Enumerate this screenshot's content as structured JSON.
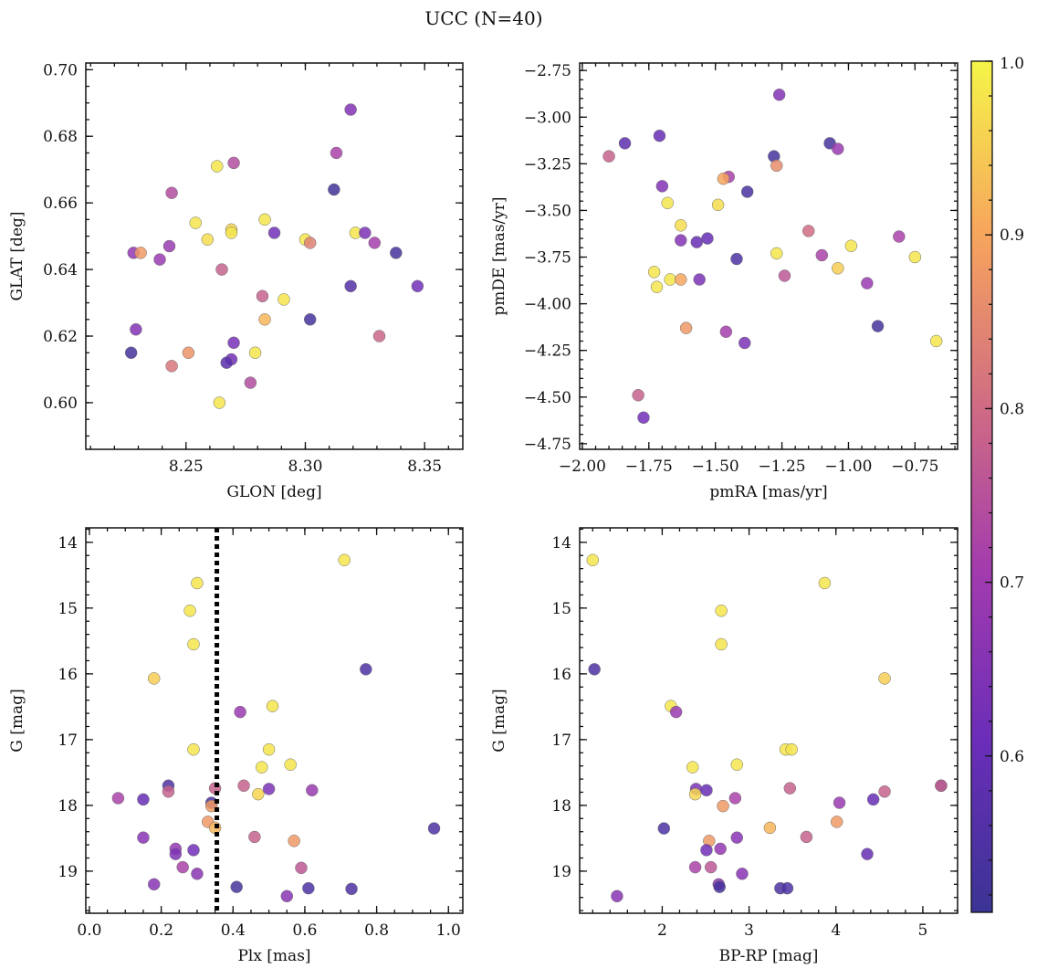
{
  "title": "UCC (N=40)",
  "colorbar": {
    "range": [
      0.51,
      1.0
    ],
    "ticks": [
      0.6,
      0.7,
      0.8,
      0.9,
      1.0
    ],
    "tick_labels": [
      "0.6",
      "0.7",
      "0.8",
      "0.9",
      "1.0"
    ],
    "colormap": "plasma"
  },
  "chart_data": [
    {
      "type": "scatter",
      "xlabel": "GLON [deg]",
      "ylabel": "GLAT [deg]",
      "xlim": [
        8.208,
        8.366
      ],
      "ylim": [
        0.586,
        0.702
      ],
      "x_ticks": [
        8.25,
        8.3,
        8.35
      ],
      "x_tick_labels": [
        "8.25",
        "8.30",
        "8.35"
      ],
      "y_ticks": [
        0.6,
        0.62,
        0.64,
        0.66,
        0.68,
        0.7
      ],
      "y_tick_labels": [
        "0.60",
        "0.62",
        "0.64",
        "0.66",
        "0.68",
        "0.70"
      ],
      "x_minor_step": 0.01,
      "y_minor_step": 0.005,
      "vline": null,
      "points": [
        {
          "x": 8.319,
          "y": 0.688,
          "c": 0.65
        },
        {
          "x": 8.313,
          "y": 0.675,
          "c": 0.72
        },
        {
          "x": 8.27,
          "y": 0.672,
          "c": 0.74
        },
        {
          "x": 8.263,
          "y": 0.671,
          "c": 0.98
        },
        {
          "x": 8.312,
          "y": 0.664,
          "c": 0.52
        },
        {
          "x": 8.244,
          "y": 0.663,
          "c": 0.74
        },
        {
          "x": 8.283,
          "y": 0.655,
          "c": 0.98
        },
        {
          "x": 8.254,
          "y": 0.654,
          "c": 0.98
        },
        {
          "x": 8.269,
          "y": 0.652,
          "c": 0.96
        },
        {
          "x": 8.269,
          "y": 0.651,
          "c": 0.98
        },
        {
          "x": 8.287,
          "y": 0.651,
          "c": 0.62
        },
        {
          "x": 8.321,
          "y": 0.651,
          "c": 0.98
        },
        {
          "x": 8.325,
          "y": 0.651,
          "c": 0.64
        },
        {
          "x": 8.259,
          "y": 0.649,
          "c": 0.97
        },
        {
          "x": 8.3,
          "y": 0.649,
          "c": 0.98
        },
        {
          "x": 8.302,
          "y": 0.648,
          "c": 0.84
        },
        {
          "x": 8.329,
          "y": 0.648,
          "c": 0.71
        },
        {
          "x": 8.243,
          "y": 0.647,
          "c": 0.69
        },
        {
          "x": 8.228,
          "y": 0.645,
          "c": 0.68
        },
        {
          "x": 8.231,
          "y": 0.645,
          "c": 0.88
        },
        {
          "x": 8.338,
          "y": 0.645,
          "c": 0.53
        },
        {
          "x": 8.239,
          "y": 0.643,
          "c": 0.69
        },
        {
          "x": 8.265,
          "y": 0.64,
          "c": 0.78
        },
        {
          "x": 8.319,
          "y": 0.635,
          "c": 0.56
        },
        {
          "x": 8.347,
          "y": 0.635,
          "c": 0.62
        },
        {
          "x": 8.282,
          "y": 0.632,
          "c": 0.78
        },
        {
          "x": 8.291,
          "y": 0.631,
          "c": 0.98
        },
        {
          "x": 8.283,
          "y": 0.625,
          "c": 0.92
        },
        {
          "x": 8.302,
          "y": 0.625,
          "c": 0.53
        },
        {
          "x": 8.229,
          "y": 0.622,
          "c": 0.65
        },
        {
          "x": 8.331,
          "y": 0.62,
          "c": 0.79
        },
        {
          "x": 8.27,
          "y": 0.618,
          "c": 0.63
        },
        {
          "x": 8.227,
          "y": 0.615,
          "c": 0.53
        },
        {
          "x": 8.251,
          "y": 0.615,
          "c": 0.87
        },
        {
          "x": 8.279,
          "y": 0.615,
          "c": 0.98
        },
        {
          "x": 8.269,
          "y": 0.613,
          "c": 0.62
        },
        {
          "x": 8.267,
          "y": 0.612,
          "c": 0.57
        },
        {
          "x": 8.244,
          "y": 0.611,
          "c": 0.82
        },
        {
          "x": 8.277,
          "y": 0.606,
          "c": 0.74
        },
        {
          "x": 8.264,
          "y": 0.6,
          "c": 0.98
        }
      ]
    },
    {
      "type": "scatter",
      "xlabel": "pmRA [mas/yr]",
      "ylabel": "pmDE [mas/yr]",
      "xlim": [
        -2.01,
        -0.59
      ],
      "ylim": [
        -4.78,
        -2.71
      ],
      "x_ticks": [
        -2.0,
        -1.75,
        -1.5,
        -1.25,
        -1.0,
        -0.75
      ],
      "x_tick_labels": [
        "−2.00",
        "−1.75",
        "−1.50",
        "−1.25",
        "−1.00",
        "−0.75"
      ],
      "y_ticks": [
        -4.75,
        -4.5,
        -4.25,
        -4.0,
        -3.75,
        -3.5,
        -3.25,
        -3.0,
        -2.75
      ],
      "y_tick_labels": [
        "−4.75",
        "−4.50",
        "−4.25",
        "−4.00",
        "−3.75",
        "−3.50",
        "−3.25",
        "−3.00",
        "−2.75"
      ],
      "x_minor_step": 0.05,
      "y_minor_step": 0.05,
      "vline": null,
      "points": [
        {
          "x": -1.26,
          "y": -2.88,
          "c": 0.65
        },
        {
          "x": -1.71,
          "y": -3.1,
          "c": 0.6
        },
        {
          "x": -1.84,
          "y": -3.14,
          "c": 0.58
        },
        {
          "x": -1.07,
          "y": -3.14,
          "c": 0.53
        },
        {
          "x": -1.04,
          "y": -3.17,
          "c": 0.69
        },
        {
          "x": -1.9,
          "y": -3.21,
          "c": 0.78
        },
        {
          "x": -1.28,
          "y": -3.21,
          "c": 0.53
        },
        {
          "x": -1.27,
          "y": -3.26,
          "c": 0.86
        },
        {
          "x": -1.45,
          "y": -3.32,
          "c": 0.72
        },
        {
          "x": -1.47,
          "y": -3.33,
          "c": 0.9
        },
        {
          "x": -1.7,
          "y": -3.37,
          "c": 0.65
        },
        {
          "x": -1.38,
          "y": -3.4,
          "c": 0.54
        },
        {
          "x": -1.68,
          "y": -3.46,
          "c": 0.98
        },
        {
          "x": -1.49,
          "y": -3.47,
          "c": 0.97
        },
        {
          "x": -1.63,
          "y": -3.58,
          "c": 0.97
        },
        {
          "x": -1.15,
          "y": -3.61,
          "c": 0.8
        },
        {
          "x": -0.81,
          "y": -3.64,
          "c": 0.72
        },
        {
          "x": -1.53,
          "y": -3.65,
          "c": 0.6
        },
        {
          "x": -1.63,
          "y": -3.66,
          "c": 0.65
        },
        {
          "x": -1.57,
          "y": -3.67,
          "c": 0.6
        },
        {
          "x": -0.99,
          "y": -3.69,
          "c": 0.98
        },
        {
          "x": -1.27,
          "y": -3.73,
          "c": 0.98
        },
        {
          "x": -1.1,
          "y": -3.74,
          "c": 0.72
        },
        {
          "x": -0.75,
          "y": -3.75,
          "c": 0.98
        },
        {
          "x": -1.42,
          "y": -3.76,
          "c": 0.55
        },
        {
          "x": -1.04,
          "y": -3.81,
          "c": 0.95
        },
        {
          "x": -1.73,
          "y": -3.83,
          "c": 0.98
        },
        {
          "x": -1.24,
          "y": -3.85,
          "c": 0.76
        },
        {
          "x": -1.67,
          "y": -3.87,
          "c": 0.98
        },
        {
          "x": -1.63,
          "y": -3.87,
          "c": 0.9
        },
        {
          "x": -1.56,
          "y": -3.87,
          "c": 0.64
        },
        {
          "x": -0.93,
          "y": -3.89,
          "c": 0.69
        },
        {
          "x": -1.72,
          "y": -3.91,
          "c": 0.98
        },
        {
          "x": -0.89,
          "y": -4.12,
          "c": 0.53
        },
        {
          "x": -1.61,
          "y": -4.13,
          "c": 0.88
        },
        {
          "x": -1.46,
          "y": -4.15,
          "c": 0.71
        },
        {
          "x": -0.67,
          "y": -4.2,
          "c": 0.98
        },
        {
          "x": -1.39,
          "y": -4.21,
          "c": 0.64
        },
        {
          "x": -1.79,
          "y": -4.49,
          "c": 0.78
        },
        {
          "x": -1.77,
          "y": -4.61,
          "c": 0.62
        }
      ]
    },
    {
      "type": "scatter",
      "xlabel": "Plx [mas]",
      "ylabel": "G [mag]",
      "xlim": [
        -0.01,
        1.04
      ],
      "ylim": [
        19.64,
        13.78
      ],
      "y_inverted": true,
      "x_ticks": [
        0.0,
        0.2,
        0.4,
        0.6,
        0.8,
        1.0
      ],
      "x_tick_labels": [
        "0.0",
        "0.2",
        "0.4",
        "0.6",
        "0.8",
        "1.0"
      ],
      "y_ticks": [
        14,
        15,
        16,
        17,
        18,
        19
      ],
      "y_tick_labels": [
        "14",
        "15",
        "16",
        "17",
        "18",
        "19"
      ],
      "x_minor_step": 0.05,
      "y_minor_step": 0.2,
      "vline": 0.355,
      "points": [
        {
          "x": 0.71,
          "y": 14.27,
          "c": 0.98
        },
        {
          "x": 0.3,
          "y": 14.62,
          "c": 0.98
        },
        {
          "x": 0.28,
          "y": 15.04,
          "c": 0.98
        },
        {
          "x": 0.29,
          "y": 15.55,
          "c": 0.98
        },
        {
          "x": 0.77,
          "y": 15.93,
          "c": 0.55
        },
        {
          "x": 0.18,
          "y": 16.07,
          "c": 0.95
        },
        {
          "x": 0.51,
          "y": 16.49,
          "c": 0.98
        },
        {
          "x": 0.42,
          "y": 16.58,
          "c": 0.69
        },
        {
          "x": 0.29,
          "y": 17.15,
          "c": 0.98
        },
        {
          "x": 0.5,
          "y": 17.15,
          "c": 0.98
        },
        {
          "x": 0.56,
          "y": 17.38,
          "c": 0.98
        },
        {
          "x": 0.48,
          "y": 17.42,
          "c": 0.98
        },
        {
          "x": 0.22,
          "y": 17.7,
          "c": 0.55
        },
        {
          "x": 0.43,
          "y": 17.7,
          "c": 0.78
        },
        {
          "x": 0.35,
          "y": 17.74,
          "c": 0.78
        },
        {
          "x": 0.5,
          "y": 17.75,
          "c": 0.64
        },
        {
          "x": 0.62,
          "y": 17.77,
          "c": 0.69
        },
        {
          "x": 0.22,
          "y": 17.79,
          "c": 0.78
        },
        {
          "x": 0.47,
          "y": 17.83,
          "c": 0.96
        },
        {
          "x": 0.08,
          "y": 17.89,
          "c": 0.72
        },
        {
          "x": 0.15,
          "y": 17.91,
          "c": 0.6
        },
        {
          "x": 0.34,
          "y": 17.96,
          "c": 0.54
        },
        {
          "x": 0.34,
          "y": 18.01,
          "c": 0.88
        },
        {
          "x": 0.33,
          "y": 18.25,
          "c": 0.88
        },
        {
          "x": 0.35,
          "y": 18.34,
          "c": 0.92
        },
        {
          "x": 0.96,
          "y": 18.35,
          "c": 0.55
        },
        {
          "x": 0.15,
          "y": 18.49,
          "c": 0.66
        },
        {
          "x": 0.46,
          "y": 18.48,
          "c": 0.78
        },
        {
          "x": 0.57,
          "y": 18.54,
          "c": 0.88
        },
        {
          "x": 0.24,
          "y": 18.66,
          "c": 0.68
        },
        {
          "x": 0.29,
          "y": 18.68,
          "c": 0.62
        },
        {
          "x": 0.24,
          "y": 18.74,
          "c": 0.64
        },
        {
          "x": 0.26,
          "y": 18.94,
          "c": 0.72
        },
        {
          "x": 0.59,
          "y": 18.95,
          "c": 0.76
        },
        {
          "x": 0.3,
          "y": 19.04,
          "c": 0.66
        },
        {
          "x": 0.18,
          "y": 19.2,
          "c": 0.66
        },
        {
          "x": 0.41,
          "y": 19.24,
          "c": 0.53
        },
        {
          "x": 0.61,
          "y": 19.26,
          "c": 0.55
        },
        {
          "x": 0.73,
          "y": 19.27,
          "c": 0.55
        },
        {
          "x": 0.55,
          "y": 19.38,
          "c": 0.66
        }
      ]
    },
    {
      "type": "scatter",
      "xlabel": "BP-RP [mag]",
      "ylabel": "G [mag]",
      "xlim": [
        1.05,
        5.4
      ],
      "ylim": [
        19.64,
        13.78
      ],
      "y_inverted": true,
      "x_ticks": [
        2,
        3,
        4,
        5
      ],
      "x_tick_labels": [
        "2",
        "3",
        "4",
        "5"
      ],
      "y_ticks": [
        14,
        15,
        16,
        17,
        18,
        19
      ],
      "y_tick_labels": [
        "14",
        "15",
        "16",
        "17",
        "18",
        "19"
      ],
      "x_minor_step": 0.2,
      "y_minor_step": 0.2,
      "vline": null,
      "points": [
        {
          "x": 1.2,
          "y": 14.27,
          "c": 0.98
        },
        {
          "x": 3.87,
          "y": 14.62,
          "c": 0.98
        },
        {
          "x": 2.68,
          "y": 15.04,
          "c": 0.98
        },
        {
          "x": 2.68,
          "y": 15.55,
          "c": 0.98
        },
        {
          "x": 1.22,
          "y": 15.93,
          "c": 0.55
        },
        {
          "x": 4.56,
          "y": 16.07,
          "c": 0.95
        },
        {
          "x": 2.1,
          "y": 16.49,
          "c": 0.98
        },
        {
          "x": 2.16,
          "y": 16.58,
          "c": 0.69
        },
        {
          "x": 3.42,
          "y": 17.15,
          "c": 0.98
        },
        {
          "x": 3.49,
          "y": 17.15,
          "c": 0.98
        },
        {
          "x": 2.86,
          "y": 17.38,
          "c": 0.98
        },
        {
          "x": 2.35,
          "y": 17.42,
          "c": 0.98
        },
        {
          "x": 5.21,
          "y": 17.7,
          "c": 0.55
        },
        {
          "x": 5.21,
          "y": 17.7,
          "c": 0.78
        },
        {
          "x": 3.47,
          "y": 17.74,
          "c": 0.78
        },
        {
          "x": 2.39,
          "y": 17.75,
          "c": 0.64
        },
        {
          "x": 2.51,
          "y": 17.77,
          "c": 0.6
        },
        {
          "x": 4.56,
          "y": 17.79,
          "c": 0.78
        },
        {
          "x": 2.38,
          "y": 17.83,
          "c": 0.96
        },
        {
          "x": 2.84,
          "y": 17.89,
          "c": 0.72
        },
        {
          "x": 4.43,
          "y": 17.91,
          "c": 0.6
        },
        {
          "x": 4.04,
          "y": 17.96,
          "c": 0.69
        },
        {
          "x": 2.7,
          "y": 18.01,
          "c": 0.88
        },
        {
          "x": 4.01,
          "y": 18.25,
          "c": 0.88
        },
        {
          "x": 3.24,
          "y": 18.34,
          "c": 0.92
        },
        {
          "x": 2.02,
          "y": 18.35,
          "c": 0.55
        },
        {
          "x": 2.86,
          "y": 18.49,
          "c": 0.66
        },
        {
          "x": 3.66,
          "y": 18.48,
          "c": 0.78
        },
        {
          "x": 2.54,
          "y": 18.54,
          "c": 0.88
        },
        {
          "x": 2.67,
          "y": 18.66,
          "c": 0.68
        },
        {
          "x": 2.51,
          "y": 18.68,
          "c": 0.62
        },
        {
          "x": 4.36,
          "y": 18.74,
          "c": 0.6
        },
        {
          "x": 2.38,
          "y": 18.94,
          "c": 0.72
        },
        {
          "x": 2.56,
          "y": 18.94,
          "c": 0.76
        },
        {
          "x": 2.92,
          "y": 19.04,
          "c": 0.66
        },
        {
          "x": 2.65,
          "y": 19.2,
          "c": 0.66
        },
        {
          "x": 2.66,
          "y": 19.24,
          "c": 0.53
        },
        {
          "x": 3.36,
          "y": 19.26,
          "c": 0.55
        },
        {
          "x": 3.44,
          "y": 19.26,
          "c": 0.55
        },
        {
          "x": 1.48,
          "y": 19.38,
          "c": 0.66
        }
      ]
    }
  ]
}
